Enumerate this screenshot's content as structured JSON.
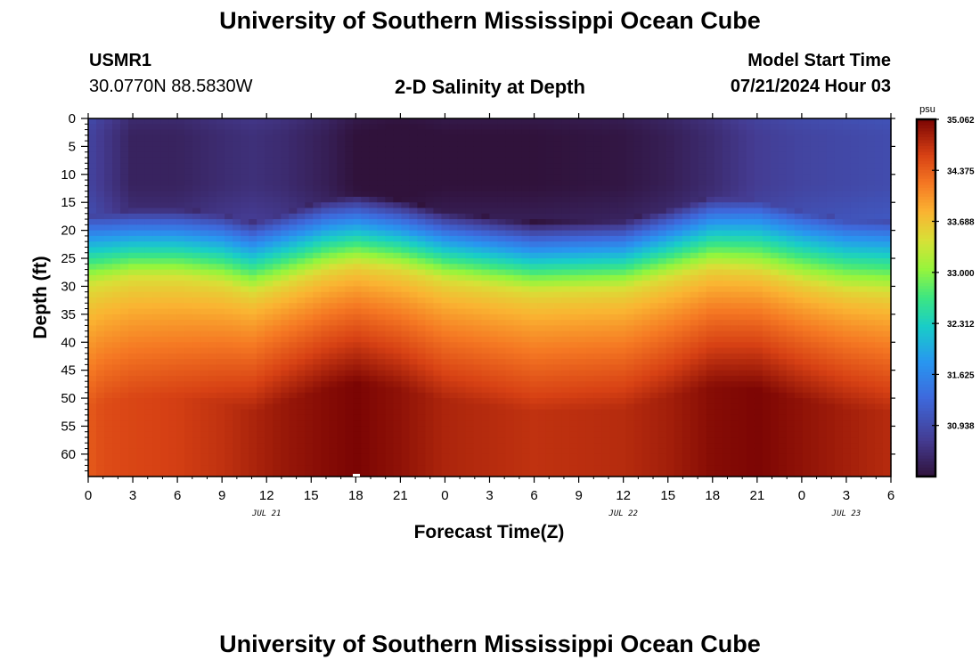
{
  "title": "University of Southern Mississippi Ocean Cube",
  "footer_title": "University of Southern Mississippi Ocean Cube",
  "station": {
    "id": "USMR1",
    "coords": "30.0770N  88.5830W"
  },
  "model": {
    "label": "Model Start Time",
    "value": "07/21/2024 Hour 03"
  },
  "chart_data": {
    "type": "heatmap",
    "title": "2-D Salinity at Depth",
    "xlabel": "Forecast Time(Z)",
    "ylabel": "Depth (ft)",
    "x_tick_labels": [
      "0",
      "3",
      "6",
      "9",
      "12",
      "15",
      "18",
      "21",
      "0",
      "3",
      "6",
      "9",
      "12",
      "15",
      "18",
      "21",
      "0",
      "3",
      "6"
    ],
    "x_range_hours": [
      0,
      54
    ],
    "date_labels": [
      {
        "text": "JUL 21",
        "hour": 12
      },
      {
        "text": "JUL 22",
        "hour": 36
      },
      {
        "text": "JUL 23",
        "hour": 51
      }
    ],
    "y_tick_labels": [
      "0",
      "5",
      "10",
      "15",
      "20",
      "25",
      "30",
      "35",
      "40",
      "45",
      "50",
      "55",
      "60"
    ],
    "y_range_ft": [
      0,
      64
    ],
    "colorbar": {
      "unit": "psu",
      "min": 30.25,
      "max": 35.062,
      "tick_labels": [
        "35.062",
        "34.375",
        "33.688",
        "33.000",
        "32.312",
        "31.625",
        "30.938"
      ],
      "tick_values": [
        35.062,
        34.375,
        33.688,
        33.0,
        32.312,
        31.625,
        30.938
      ]
    },
    "profiles": [
      {
        "hour": 0,
        "surface": 30.85,
        "halocline_ft": 20.5,
        "bottom": 34.4
      },
      {
        "hour": 1,
        "surface": 30.7,
        "halocline_ft": 20.0,
        "bottom": 34.5
      },
      {
        "hour": 3,
        "surface": 30.45,
        "halocline_ft": 19.0,
        "bottom": 34.55
      },
      {
        "hour": 6,
        "surface": 30.45,
        "halocline_ft": 19.0,
        "bottom": 34.6
      },
      {
        "hour": 9,
        "surface": 30.55,
        "halocline_ft": 20.0,
        "bottom": 34.7
      },
      {
        "hour": 11,
        "surface": 30.6,
        "halocline_ft": 21.5,
        "bottom": 34.8
      },
      {
        "hour": 13,
        "surface": 30.55,
        "halocline_ft": 20.0,
        "bottom": 34.9
      },
      {
        "hour": 16,
        "surface": 30.4,
        "halocline_ft": 17.5,
        "bottom": 35.0
      },
      {
        "hour": 18,
        "surface": 30.25,
        "halocline_ft": 16.5,
        "bottom": 35.06
      },
      {
        "hour": 21,
        "surface": 30.2,
        "halocline_ft": 17.5,
        "bottom": 34.95
      },
      {
        "hour": 24,
        "surface": 30.25,
        "halocline_ft": 19.5,
        "bottom": 34.8
      },
      {
        "hour": 30,
        "surface": 30.25,
        "halocline_ft": 21.5,
        "bottom": 34.7
      },
      {
        "hour": 36,
        "surface": 30.3,
        "halocline_ft": 21.0,
        "bottom": 34.75
      },
      {
        "hour": 39,
        "surface": 30.4,
        "halocline_ft": 19.0,
        "bottom": 34.85
      },
      {
        "hour": 42,
        "surface": 30.55,
        "halocline_ft": 17.0,
        "bottom": 35.0
      },
      {
        "hour": 45,
        "surface": 30.75,
        "halocline_ft": 17.5,
        "bottom": 35.05
      },
      {
        "hour": 48,
        "surface": 30.85,
        "halocline_ft": 19.5,
        "bottom": 34.95
      },
      {
        "hour": 51,
        "surface": 30.9,
        "halocline_ft": 21.0,
        "bottom": 34.85
      },
      {
        "hour": 54,
        "surface": 30.95,
        "halocline_ft": 21.5,
        "bottom": 34.75
      }
    ]
  }
}
